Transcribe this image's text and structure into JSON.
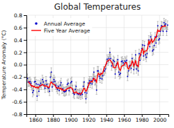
{
  "chart_data": {
    "type": "line",
    "title": "Global Temperatures",
    "ylabel": "Temperature Anomaly (°C)",
    "xlim": [
      1850,
      2010
    ],
    "ylim": [
      -0.8,
      0.8
    ],
    "xticks": [
      1860,
      1880,
      1900,
      1920,
      1940,
      1960,
      1980,
      2000
    ],
    "yticks": [
      -0.8,
      -0.6,
      -0.4,
      -0.2,
      {
        "value": 0.0,
        "label": "0.0"
      },
      0.2,
      0.4,
      0.6,
      0.8
    ],
    "grid": true,
    "legend": "upper left",
    "series": [
      {
        "name": "Annual Average",
        "color": "#0000cc",
        "marker": "circle",
        "line_style": "solid",
        "error": 0.07,
        "x": [
          1850,
          1851,
          1852,
          1853,
          1854,
          1855,
          1856,
          1857,
          1858,
          1859,
          1860,
          1861,
          1862,
          1863,
          1864,
          1865,
          1866,
          1867,
          1868,
          1869,
          1870,
          1871,
          1872,
          1873,
          1874,
          1875,
          1876,
          1877,
          1878,
          1879,
          1880,
          1881,
          1882,
          1883,
          1884,
          1885,
          1886,
          1887,
          1888,
          1889,
          1890,
          1891,
          1892,
          1893,
          1894,
          1895,
          1896,
          1897,
          1898,
          1899,
          1900,
          1901,
          1902,
          1903,
          1904,
          1905,
          1906,
          1907,
          1908,
          1909,
          1910,
          1911,
          1912,
          1913,
          1914,
          1915,
          1916,
          1917,
          1918,
          1919,
          1920,
          1921,
          1922,
          1923,
          1924,
          1925,
          1926,
          1927,
          1928,
          1929,
          1930,
          1931,
          1932,
          1933,
          1934,
          1935,
          1936,
          1937,
          1938,
          1939,
          1940,
          1941,
          1942,
          1943,
          1944,
          1945,
          1946,
          1947,
          1948,
          1949,
          1950,
          1951,
          1952,
          1953,
          1954,
          1955,
          1956,
          1957,
          1958,
          1959,
          1960,
          1961,
          1962,
          1963,
          1964,
          1965,
          1966,
          1967,
          1968,
          1969,
          1970,
          1971,
          1972,
          1973,
          1974,
          1975,
          1976,
          1977,
          1978,
          1979,
          1980,
          1981,
          1982,
          1983,
          1984,
          1985,
          1986,
          1987,
          1988,
          1989,
          1990,
          1991,
          1992,
          1993,
          1994,
          1995,
          1996,
          1997,
          1998,
          1999,
          2000,
          2001,
          2002,
          2003,
          2004,
          2005,
          2006,
          2007,
          2008,
          2009
        ],
        "values": [
          -0.3,
          -0.22,
          -0.28,
          -0.28,
          -0.27,
          -0.3,
          -0.34,
          -0.45,
          -0.42,
          -0.28,
          -0.27,
          -0.31,
          -0.51,
          -0.32,
          -0.43,
          -0.33,
          -0.3,
          -0.33,
          -0.24,
          -0.28,
          -0.33,
          -0.38,
          -0.26,
          -0.32,
          -0.37,
          -0.38,
          -0.43,
          -0.2,
          -0.12,
          -0.36,
          -0.28,
          -0.24,
          -0.27,
          -0.33,
          -0.37,
          -0.4,
          -0.35,
          -0.42,
          -0.33,
          -0.29,
          -0.4,
          -0.39,
          -0.43,
          -0.44,
          -0.43,
          -0.42,
          -0.32,
          -0.3,
          -0.42,
          -0.37,
          -0.29,
          -0.27,
          -0.4,
          -0.46,
          -0.48,
          -0.4,
          -0.35,
          -0.47,
          -0.47,
          -0.48,
          -0.46,
          -0.49,
          -0.46,
          -0.48,
          -0.35,
          -0.28,
          -0.45,
          -0.55,
          -0.46,
          -0.36,
          -0.3,
          -0.26,
          -0.3,
          -0.26,
          -0.31,
          -0.22,
          -0.12,
          -0.26,
          -0.25,
          -0.41,
          -0.1,
          -0.1,
          -0.19,
          -0.22,
          -0.14,
          -0.23,
          -0.18,
          -0.1,
          -0.1,
          -0.07,
          0.01,
          0.09,
          0.06,
          0.1,
          0.2,
          0.1,
          -0.02,
          0.02,
          0.07,
          0.05,
          -0.15,
          -0.01,
          0.02,
          0.08,
          -0.12,
          -0.16,
          -0.14,
          0.05,
          0.06,
          0.03,
          0.0,
          0.06,
          0.04,
          0.07,
          -0.19,
          -0.1,
          -0.02,
          -0.01,
          -0.06,
          0.1,
          0.04,
          -0.08,
          0.01,
          0.16,
          -0.07,
          -0.02,
          -0.1,
          0.18,
          0.07,
          0.16,
          0.26,
          0.32,
          0.14,
          0.31,
          0.16,
          0.12,
          0.18,
          0.33,
          0.4,
          0.29,
          0.45,
          0.41,
          0.22,
          0.24,
          0.31,
          0.45,
          0.35,
          0.46,
          0.63,
          0.4,
          0.42,
          0.54,
          0.63,
          0.62,
          0.54,
          0.68,
          0.64,
          0.66,
          0.54,
          0.64
        ]
      },
      {
        "name": "Five Year Average",
        "color": "red",
        "line_style": "solid",
        "x": [
          1852,
          1853,
          1854,
          1855,
          1856,
          1857,
          1858,
          1859,
          1860,
          1861,
          1862,
          1863,
          1864,
          1865,
          1866,
          1867,
          1868,
          1869,
          1870,
          1871,
          1872,
          1873,
          1874,
          1875,
          1876,
          1877,
          1878,
          1879,
          1880,
          1881,
          1882,
          1883,
          1884,
          1885,
          1886,
          1887,
          1888,
          1889,
          1890,
          1891,
          1892,
          1893,
          1894,
          1895,
          1896,
          1897,
          1898,
          1899,
          1900,
          1901,
          1902,
          1903,
          1904,
          1905,
          1906,
          1907,
          1908,
          1909,
          1910,
          1911,
          1912,
          1913,
          1914,
          1915,
          1916,
          1917,
          1918,
          1919,
          1920,
          1921,
          1922,
          1923,
          1924,
          1925,
          1926,
          1927,
          1928,
          1929,
          1930,
          1931,
          1932,
          1933,
          1934,
          1935,
          1936,
          1937,
          1938,
          1939,
          1940,
          1941,
          1942,
          1943,
          1944,
          1945,
          1946,
          1947,
          1948,
          1949,
          1950,
          1951,
          1952,
          1953,
          1954,
          1955,
          1956,
          1957,
          1958,
          1959,
          1960,
          1961,
          1962,
          1963,
          1964,
          1965,
          1966,
          1967,
          1968,
          1969,
          1970,
          1971,
          1972,
          1973,
          1974,
          1975,
          1976,
          1977,
          1978,
          1979,
          1980,
          1981,
          1982,
          1983,
          1984,
          1985,
          1986,
          1987,
          1988,
          1989,
          1990,
          1991,
          1992,
          1993,
          1994,
          1995,
          1996,
          1997,
          1998,
          1999,
          2000,
          2001,
          2002,
          2003,
          2004,
          2005,
          2006,
          2007
        ],
        "values": [
          -0.27,
          -0.29,
          -0.31,
          -0.33,
          -0.35,
          -0.34,
          -0.36,
          -0.35,
          -0.37,
          -0.37,
          -0.36,
          -0.38,
          -0.36,
          -0.35,
          -0.34,
          -0.33,
          -0.32,
          -0.33,
          -0.34,
          -0.35,
          -0.34,
          -0.35,
          -0.36,
          -0.37,
          -0.36,
          -0.3,
          -0.28,
          -0.3,
          -0.31,
          -0.32,
          -0.33,
          -0.36,
          -0.38,
          -0.38,
          -0.37,
          -0.38,
          -0.39,
          -0.38,
          -0.41,
          -0.4,
          -0.42,
          -0.42,
          -0.41,
          -0.4,
          -0.39,
          -0.38,
          -0.38,
          -0.37,
          -0.37,
          -0.38,
          -0.4,
          -0.44,
          -0.46,
          -0.45,
          -0.44,
          -0.46,
          -0.46,
          -0.47,
          -0.47,
          -0.48,
          -0.46,
          -0.44,
          -0.4,
          -0.38,
          -0.4,
          -0.43,
          -0.41,
          -0.37,
          -0.33,
          -0.29,
          -0.28,
          -0.27,
          -0.28,
          -0.25,
          -0.22,
          -0.24,
          -0.25,
          -0.28,
          -0.18,
          -0.14,
          -0.15,
          -0.17,
          -0.14,
          -0.15,
          -0.13,
          -0.08,
          -0.04,
          -0.02,
          0.02,
          0.06,
          0.06,
          0.08,
          0.08,
          0.06,
          0.04,
          0.02,
          -0.04,
          -0.05,
          -0.05,
          -0.02,
          0.01,
          0.04,
          -0.04,
          -0.08,
          -0.09,
          -0.03,
          -0.02,
          -0.01,
          -0.01,
          0.03,
          0.03,
          0.03,
          -0.05,
          -0.07,
          -0.05,
          -0.01,
          -0.01,
          0.06,
          0.04,
          -0.02,
          0.02,
          0.07,
          -0.01,
          -0.01,
          -0.03,
          0.11,
          0.14,
          0.19,
          0.24,
          0.26,
          0.18,
          0.22,
          0.22,
          0.22,
          0.24,
          0.3,
          0.38,
          0.34,
          0.38,
          0.41,
          0.36,
          0.38,
          0.4,
          0.44,
          0.44,
          0.5,
          0.56,
          0.54,
          0.54,
          0.57,
          0.6,
          0.62,
          0.62,
          0.62,
          0.63,
          0.62
        ]
      }
    ]
  }
}
